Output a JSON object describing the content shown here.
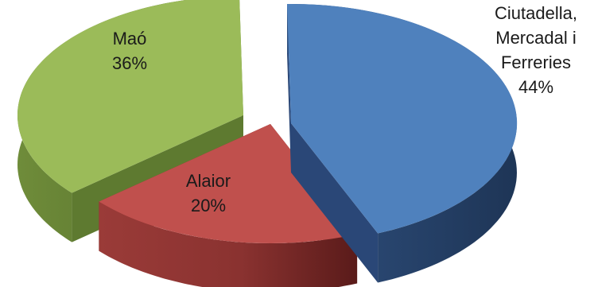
{
  "chart_data": {
    "type": "pie",
    "style": "3d-exploded",
    "title": "",
    "legend": "none",
    "slices": [
      {
        "label_lines": [
          "Ciutadella,",
          "Mercadal i",
          "Ferreries"
        ],
        "percent_label": "44%",
        "value": 44,
        "color": "#4F81BD",
        "side_color": "#2A4777"
      },
      {
        "label_lines": [
          "Alaior"
        ],
        "percent_label": "20%",
        "value": 20,
        "color": "#C0504D",
        "side_color": "#7E2B29"
      },
      {
        "label_lines": [
          "Maó"
        ],
        "percent_label": "36%",
        "value": 36,
        "color": "#9BBB59",
        "side_color": "#5E7A30"
      }
    ]
  }
}
